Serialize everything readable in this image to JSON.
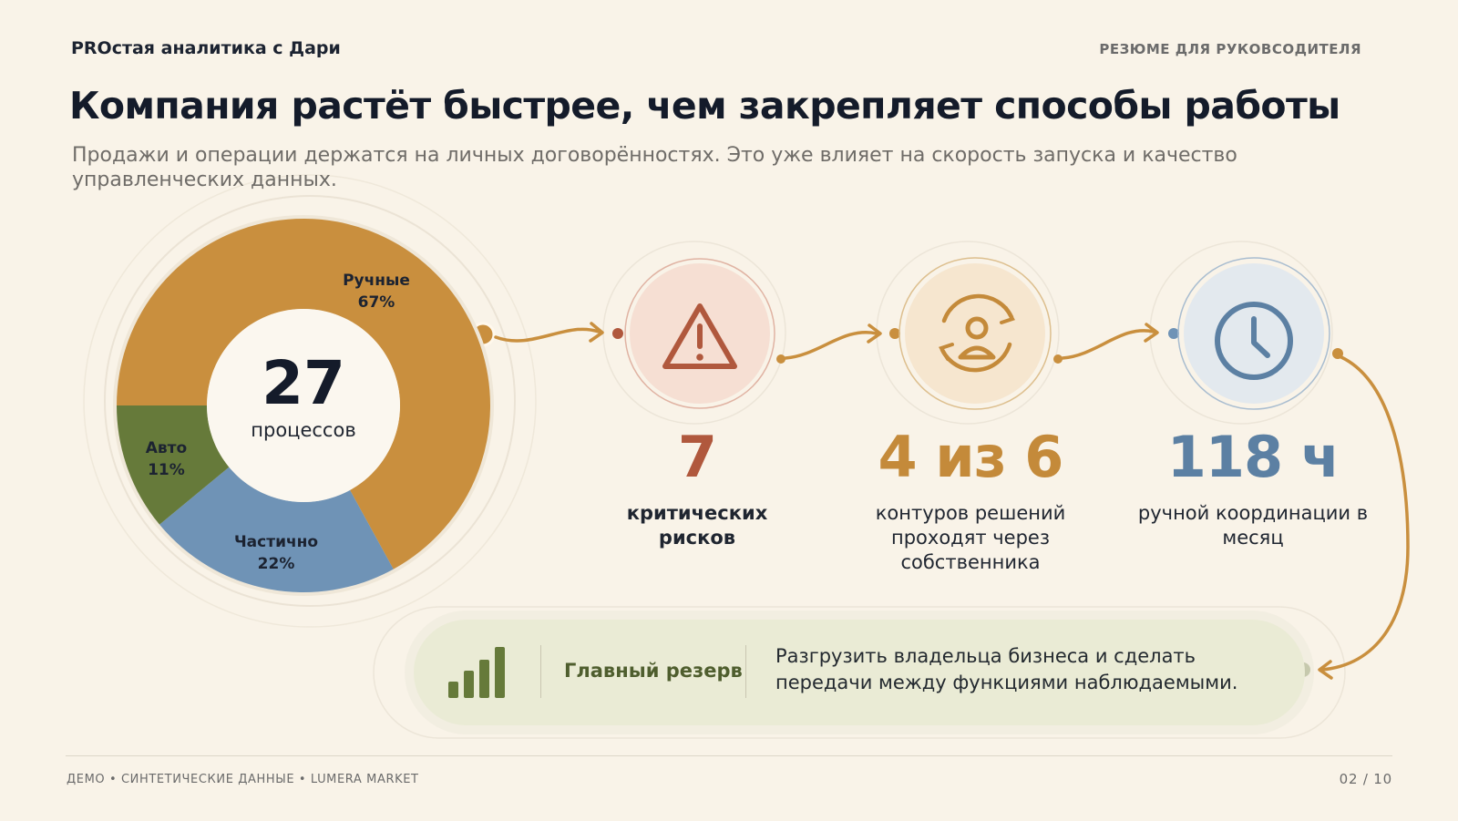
{
  "header": {
    "brand": "PROстая аналитика с Дари",
    "section": "РЕЗЮМЕ ДЛЯ РУКОВСОДИТЕЛЯ"
  },
  "headline": "Компания растёт быстрее, чем закрепляет способы работы",
  "subhead": "Продажи и операции держатся на личных договорённостях. Это уже влияет на скорость запуска и качество управленческих данных.",
  "chart_data": {
    "type": "pie",
    "title": "",
    "center_value": "27",
    "center_label": "процессов",
    "slices": [
      {
        "label": "Ручные",
        "value": 67,
        "value_label": "67%",
        "color": "#c98f3e"
      },
      {
        "label": "Частично",
        "value": 22,
        "value_label": "22%",
        "color": "#6f93b6"
      },
      {
        "label": "Авто",
        "value": 11,
        "value_label": "11%",
        "color": "#667a3a"
      }
    ]
  },
  "kpis": [
    {
      "value": "7",
      "caption": "критических рисков",
      "icon": "warning-icon",
      "color": "#b0583d"
    },
    {
      "value": "4 из 6",
      "caption": "контуров решений проходят через собственника",
      "icon": "person-cycle-icon",
      "color": "#c48a3a"
    },
    {
      "value": "118 ч",
      "caption": "ручной координации в месяц",
      "icon": "clock-icon",
      "color": "#5c80a3"
    }
  ],
  "reserve": {
    "label": "Главный резерв",
    "text": "Разгрузить владельца бизнеса и сделать передачи между функциями наблюдаемыми.",
    "icon": "bar-chart-icon"
  },
  "footer": {
    "left": "ДЕМО • СИНТЕТИЧЕСКИЕ ДАННЫЕ  •  LUMERA MARKET",
    "page": "02 / 10"
  }
}
